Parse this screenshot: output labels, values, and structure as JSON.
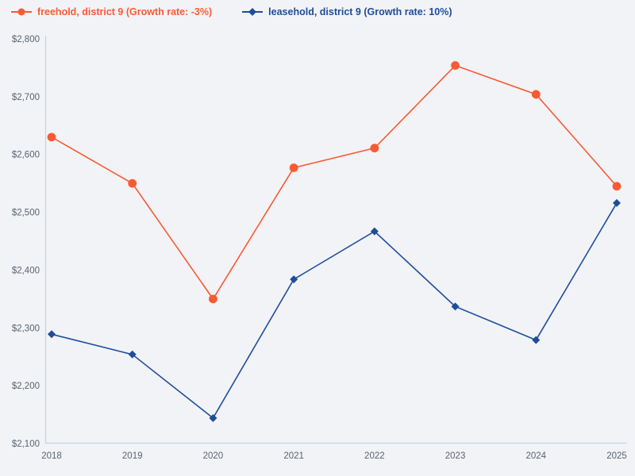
{
  "colors": {
    "freehold": "#f95a33",
    "leasehold": "#1e4d9b",
    "background": "#f2f3f6",
    "axis_line": "#c5d1e8",
    "tick_text": "#5a6370"
  },
  "legend": {
    "position": "top-left",
    "items": [
      {
        "label": "freehold, district 9 (Growth rate: -3%)",
        "marker": "circle",
        "color": "#f95a33"
      },
      {
        "label": "leasehold, district 9 (Growth rate: 10%)",
        "marker": "diamond",
        "color": "#1e4d9b"
      }
    ]
  },
  "chart_data": {
    "type": "line",
    "x": [
      2018,
      2019,
      2020,
      2021,
      2022,
      2023,
      2024,
      2025
    ],
    "xtick_labels": [
      "2018",
      "2019",
      "2020",
      "2021",
      "2022",
      "2023",
      "2024",
      "2025"
    ],
    "series": [
      {
        "name": "freehold, district 9 (Growth rate: -3%)",
        "color": "#f95a33",
        "marker": "circle",
        "values": [
          2630,
          2550,
          2350,
          2577,
          2611,
          2754,
          2704,
          2545
        ]
      },
      {
        "name": "leasehold, district 9 (Growth rate: 10%)",
        "color": "#1e4d9b",
        "marker": "diamond",
        "values": [
          2289,
          2254,
          2144,
          2384,
          2467,
          2337,
          2279,
          2516
        ]
      }
    ],
    "title": "",
    "xlabel": "",
    "ylabel": "",
    "ylim": [
      2100,
      2800
    ],
    "ytick_step": 100,
    "ytick_labels": [
      "$2,100",
      "$2,200",
      "$2,300",
      "$2,400",
      "$2,500",
      "$2,600",
      "$2,700",
      "$2,800"
    ],
    "grid": false,
    "legend_position": "top-left"
  }
}
